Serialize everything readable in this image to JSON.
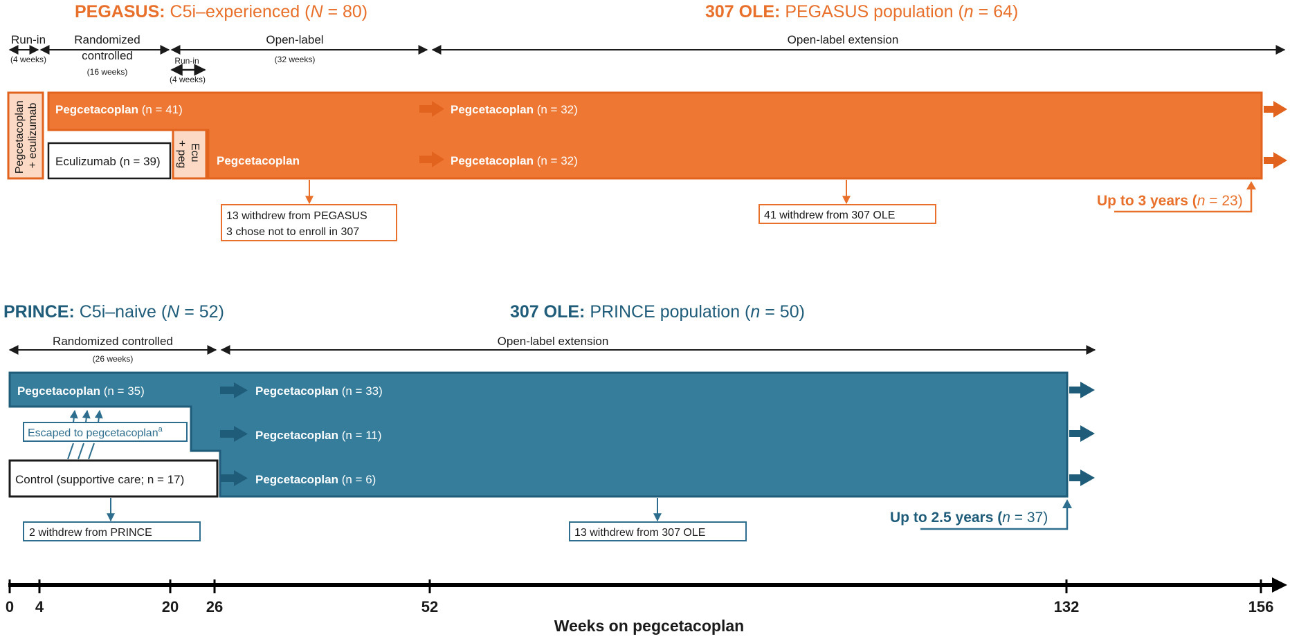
{
  "colors": {
    "orange": "#e8702a",
    "orange_dark": "#e2631d",
    "blue": "#2d6e8e",
    "blue_dark": "#1f5c7a",
    "light_fill": "#fbd9c4",
    "text_dark": "#1a1a1a"
  },
  "pegasus": {
    "title_bold": "PEGASUS:",
    "title_rest": " C5i–experienced (",
    "title_var": "N",
    "title_eq": " = 80)",
    "ole_title_bold": "307 OLE:",
    "ole_title_rest": " PEGASUS population (",
    "ole_title_var": "n",
    "ole_title_eq": " = 64)",
    "phase_runin": "Run-in",
    "phase_runin_dur": "(4 weeks)",
    "phase_rc_line1": "Randomized",
    "phase_rc_line2": "controlled",
    "phase_rc_dur": "(16 weeks)",
    "phase_ol": "Open-label",
    "phase_ol_dur": "(32 weeks)",
    "phase_runin2": "Run-in",
    "phase_runin2_dur": "(4 weeks)",
    "phase_ole": "Open-label extension",
    "runin_box_line1": "Pegcetacoplan",
    "runin_box_line2": "+ eculizumab",
    "ecu_box_line1": "Ecu",
    "ecu_box_line2": "+ peg",
    "arm1_name": "Pegcetacoplan",
    "arm1_n": " (n = 41)",
    "arm2_name": "Eculizumab",
    "arm2_n": " (n = 39)",
    "arm2b_name": "Pegcetacoplan",
    "ole_arm1_name": "Pegcetacoplan",
    "ole_arm1_n": " (n = 32)",
    "ole_arm2_name": "Pegcetacoplan",
    "ole_arm2_n": " (n = 32)",
    "withdraw1_line1": "13 withdrew from PEGASUS",
    "withdraw1_line2": "3 chose not to enroll in 307",
    "withdraw2": "41 withdrew from 307 OLE",
    "upto": "Up to 3 years (",
    "upto_var": "n",
    "upto_eq": " = 23)"
  },
  "prince": {
    "title_bold": "PRINCE:",
    "title_rest": " C5i–naive (",
    "title_var": "N",
    "title_eq": " = 52)",
    "ole_title_bold": "307 OLE:",
    "ole_title_rest": " PRINCE population (",
    "ole_title_var": "n",
    "ole_title_eq": " = 50)",
    "phase_rc": "Randomized controlled",
    "phase_rc_dur": "(26 weeks)",
    "phase_ole": "Open-label extension",
    "arm1_name": "Pegcetacoplan",
    "arm1_n": " (n = 35)",
    "escaped": "Escaped to pegcetacoplan",
    "escaped_sup": "a",
    "control": "Control (supportive care; n = 17)",
    "ole_arm1_name": "Pegcetacoplan",
    "ole_arm1_n": " (n = 33)",
    "ole_arm2_name": "Pegcetacoplan",
    "ole_arm2_n": " (n = 11)",
    "ole_arm3_name": "Pegcetacoplan",
    "ole_arm3_n": " (n = 6)",
    "withdraw1": "2 withdrew from PRINCE",
    "withdraw2": "13 withdrew from 307 OLE",
    "upto": "Up to 2.5 years (",
    "upto_var": "n",
    "upto_eq": " = 37)"
  },
  "axis": {
    "label": "Weeks on pegcetacoplan",
    "ticks": [
      "0",
      "4",
      "20",
      "26",
      "52",
      "132",
      "156"
    ]
  }
}
